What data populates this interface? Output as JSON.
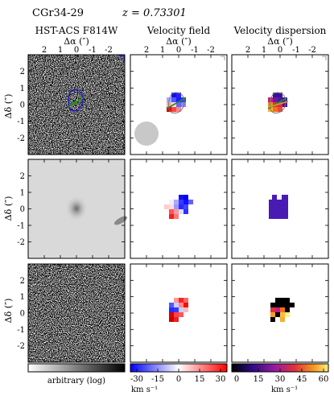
{
  "header": {
    "object_id": "CGr34-29",
    "redshift_label": "z = 0.73301"
  },
  "columns": [
    {
      "title": "HST-ACS F814W",
      "xlabel": "Δα (″)"
    },
    {
      "title": "Velocity field",
      "xlabel": "Δα (″)"
    },
    {
      "title": "Velocity dispersion",
      "xlabel": "Δα (″)"
    }
  ],
  "ylabel": "Δδ (″)",
  "x_ticks": [
    "2",
    "1",
    "0",
    "-1",
    "-2"
  ],
  "y_ticks": [
    "2",
    "1",
    "0",
    "-1",
    "-2"
  ],
  "colorbars": {
    "hst": {
      "label": "arbitrary (log)"
    },
    "velocity": {
      "ticks": [
        "-30",
        "-15",
        "0",
        "15",
        "30"
      ],
      "unit": "km s⁻¹",
      "range": [
        -30,
        30
      ]
    },
    "dispersion": {
      "ticks": [
        "0",
        "15",
        "30",
        "45",
        "60"
      ],
      "unit": "km s⁻¹",
      "range": [
        0,
        60
      ]
    }
  },
  "colors": {
    "hst_noise_bg": "#ffffff",
    "contour": "#1d1dcc",
    "kinematic_axis": "#2a8a2a",
    "morph_axis": "#d4a020",
    "psf_disc": "#c8c8c8"
  }
}
